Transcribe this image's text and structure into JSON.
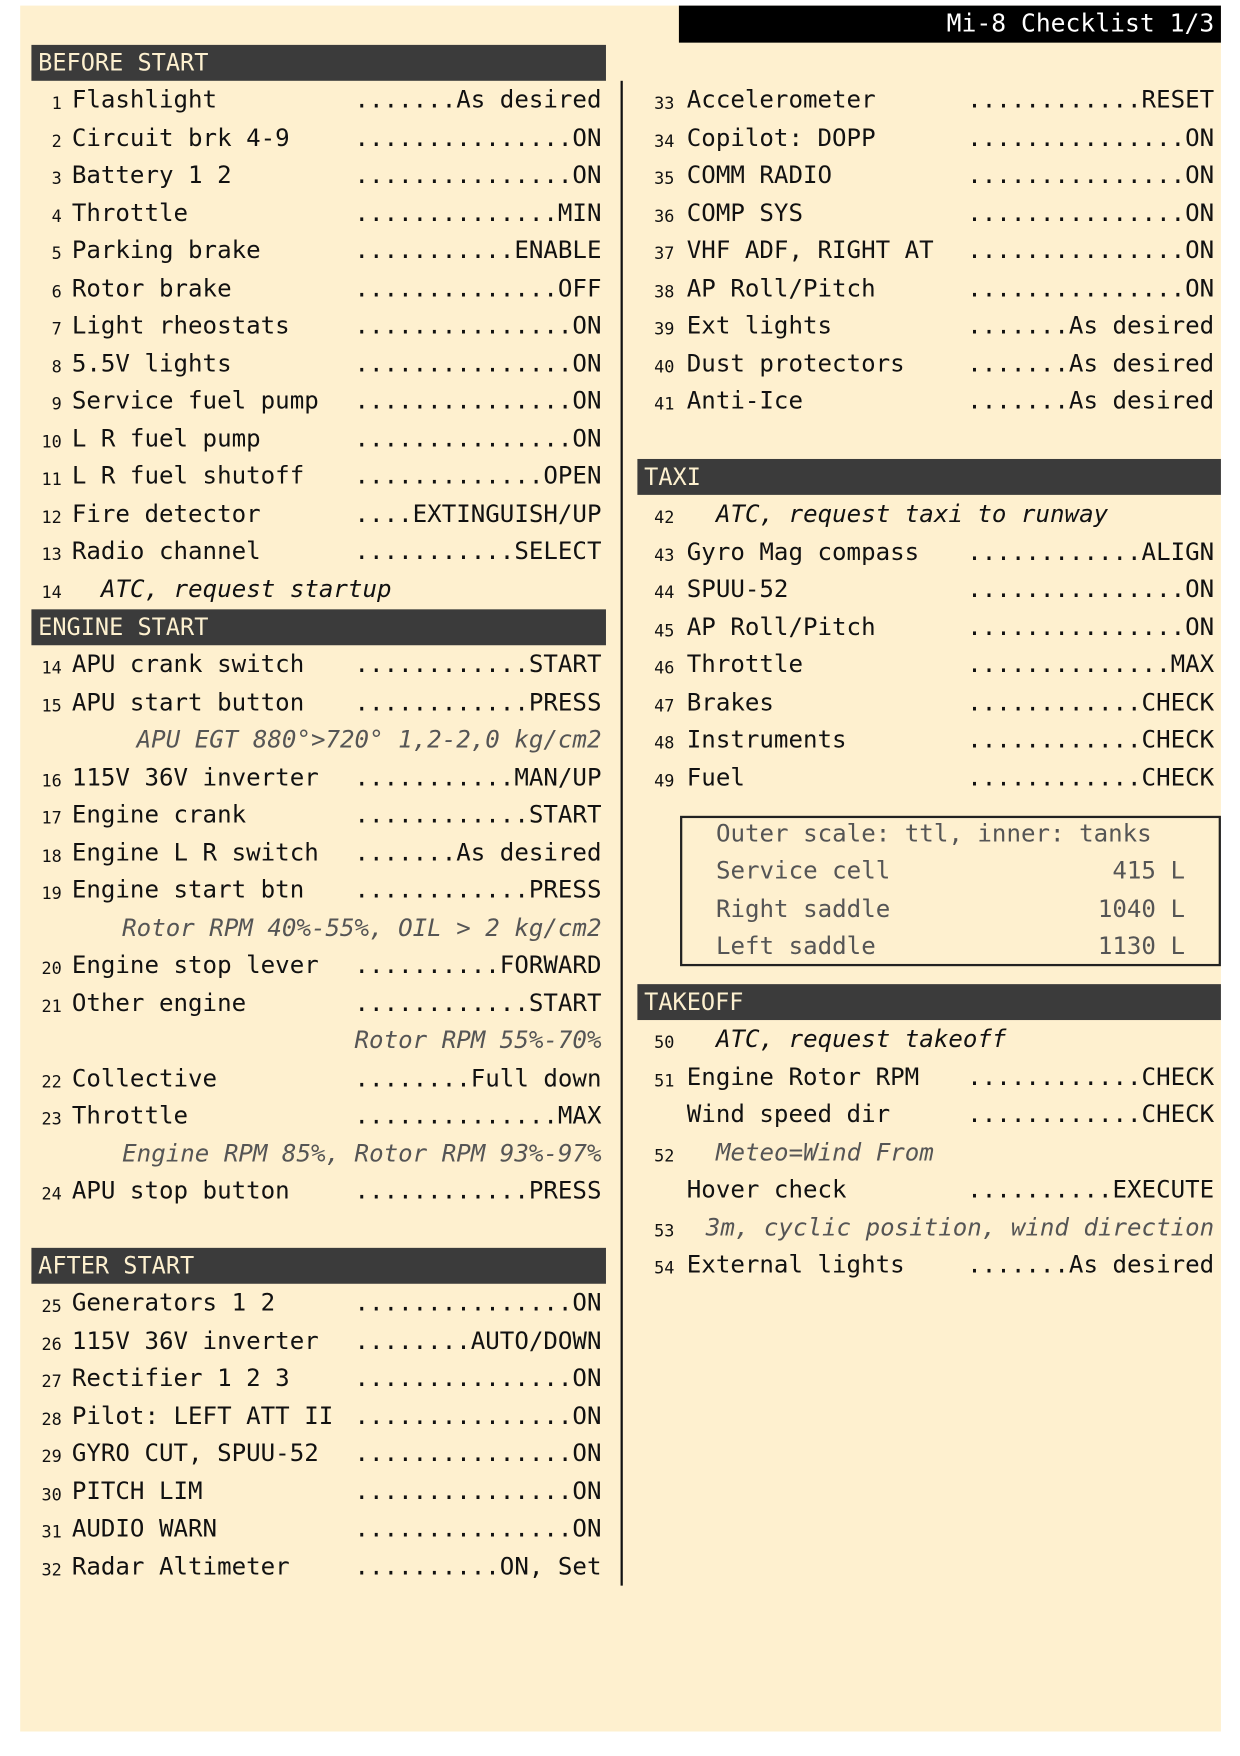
{
  "title": "Mi-8 Checklist 1/3",
  "columns": [
    [
      {
        "title": "BEFORE START",
        "rows": [
          {
            "num": "1",
            "label": "Flashlight",
            "value": ".......As desired"
          },
          {
            "num": "2",
            "label": "Circuit brk 4-9",
            "value": "...............ON"
          },
          {
            "num": "3",
            "label": "Battery 1 2",
            "value": "...............ON"
          },
          {
            "num": "4",
            "label": "Throttle",
            "value": "..............MIN"
          },
          {
            "num": "5",
            "label": "Parking brake",
            "value": "...........ENABLE"
          },
          {
            "num": "6",
            "label": "Rotor brake",
            "value": "..............OFF"
          },
          {
            "num": "7",
            "label": "Light rheostats",
            "value": "...............ON"
          },
          {
            "num": "8",
            "label": "5.5V lights",
            "value": "...............ON"
          },
          {
            "num": "9",
            "label": "Service fuel pump",
            "value": "...............ON"
          },
          {
            "num": "10",
            "label": "L R fuel pump",
            "value": "...............ON"
          },
          {
            "num": "11",
            "label": "L R fuel shutoff",
            "value": ".............OPEN"
          },
          {
            "num": "12",
            "label": "Fire detector",
            "value": "....EXTINGUISH/UP"
          },
          {
            "num": "13",
            "label": "Radio channel",
            "value": "...........SELECT"
          },
          {
            "num": "14",
            "text": "ATC, request startup"
          }
        ]
      },
      {
        "title": "ENGINE START",
        "rows": [
          {
            "num": "14",
            "label": "APU crank switch",
            "value": "............START"
          },
          {
            "num": "15",
            "label": "APU start button",
            "value": "............PRESS"
          },
          {
            "text": "APU EGT 880°>720° 1,2-2,0 kg/cm2"
          },
          {
            "num": "16",
            "label": "115V 36V inverter",
            "value": "...........MAN/UP"
          },
          {
            "num": "17",
            "label": "Engine crank",
            "value": "............START"
          },
          {
            "num": "18",
            "label": "Engine L R switch",
            "value": ".......As desired"
          },
          {
            "num": "19",
            "label": "Engine start btn",
            "value": "............PRESS"
          },
          {
            "text": "Rotor RPM 40%-55%, OIL > 2 kg/cm2"
          },
          {
            "num": "20",
            "label": "Engine stop lever",
            "value": "..........FORWARD"
          },
          {
            "num": "21",
            "label": "Other engine",
            "value": "............START"
          },
          {
            "text": "Rotor RPM 55%-70%"
          },
          {
            "num": "22",
            "label": "Collective",
            "value": "........Full down"
          },
          {
            "num": "23",
            "label": "Throttle",
            "value": "..............MAX"
          },
          {
            "text": "Engine RPM 85%, Rotor RPM 93%-97%"
          },
          {
            "num": "24",
            "label": "APU stop button",
            "value": "............PRESS"
          }
        ]
      },
      {
        "title": "AFTER START",
        "rows": [
          {
            "num": "25",
            "label": "Generators 1 2",
            "value": "...............ON"
          },
          {
            "num": "26",
            "label": "115V 36V inverter",
            "value": "........AUTO/DOWN"
          },
          {
            "num": "27",
            "label": "Rectifier 1 2 3",
            "value": "...............ON"
          },
          {
            "num": "28",
            "label": "Pilot: LEFT ATT II",
            "value": "...............ON"
          },
          {
            "num": "29",
            "label": "GYRO CUT, SPUU-52",
            "value": "...............ON"
          },
          {
            "num": "30",
            "label": "PITCH LIM",
            "value": "...............ON"
          },
          {
            "num": "31",
            "label": "AUDIO WARN",
            "value": "...............ON"
          },
          {
            "num": "32",
            "label": "Radar Altimeter",
            "value": "..........ON, Set"
          }
        ]
      }
    ],
    [
      {
        "rows": [
          {
            "num": "33",
            "label": "Accelerometer",
            "value": "............RESET"
          },
          {
            "num": "34",
            "label": "Copilot: DOPP",
            "value": "...............ON"
          },
          {
            "num": "35",
            "label": "COMM RADIO",
            "value": "...............ON"
          },
          {
            "num": "36",
            "label": "COMP SYS",
            "value": "...............ON"
          },
          {
            "num": "37",
            "label": "VHF ADF, RIGHT AT",
            "value": "...............ON"
          },
          {
            "num": "38",
            "label": "AP Roll/Pitch",
            "value": "...............ON"
          },
          {
            "num": "39",
            "label": "Ext lights",
            "value": ".......As desired"
          },
          {
            "num": "40",
            "label": "Dust protectors",
            "value": ".......As desired"
          },
          {
            "num": "41",
            "label": "Anti-Ice",
            "value": ".......As desired"
          }
        ]
      },
      {
        "title": "TAXI",
        "rows": [
          {
            "num": "42",
            "text": "ATC, request taxi to runway"
          },
          {
            "num": "43",
            "label": "Gyro Mag compass",
            "value": "............ALIGN"
          },
          {
            "num": "44",
            "label": "SPUU-52",
            "value": "...............ON"
          },
          {
            "num": "45",
            "label": "AP Roll/Pitch",
            "value": "...............ON"
          },
          {
            "num": "46",
            "label": "Throttle",
            "value": "..............MAX"
          },
          {
            "num": "47",
            "label": "Brakes",
            "value": "............CHECK"
          },
          {
            "num": "48",
            "label": "Instruments",
            "value": "............CHECK"
          },
          {
            "num": "49",
            "label": "Fuel",
            "value": "............CHECK"
          }
        ],
        "box": {
          "caption": "Outer scale: ttl, inner: tanks",
          "rows": [
            {
              "label": "Service cell",
              "value": "415 L"
            },
            {
              "label": "Right saddle",
              "value": "1040 L"
            },
            {
              "label": "Left saddle",
              "value": "1130 L"
            }
          ]
        }
      },
      {
        "title": "TAKEOFF",
        "rows": [
          {
            "num": "50",
            "text": "ATC, request takeoff"
          },
          {
            "num": "51",
            "label": "Engine Rotor RPM",
            "value": "............CHECK"
          },
          {
            "label": "Wind speed dir",
            "value": "............CHECK"
          },
          {
            "num": "52",
            "text": "Meteo=Wind From"
          },
          {
            "label": "Hover check",
            "value": "..........EXECUTE"
          },
          {
            "num": "53",
            "text": "3m, cyclic position, wind direction"
          },
          {
            "num": "54",
            "label": "External lights",
            "value": ".......As desired"
          }
        ]
      }
    ]
  ]
}
